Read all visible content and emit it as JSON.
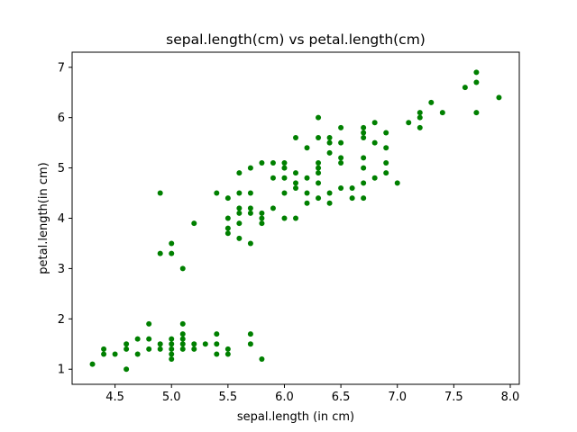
{
  "chart_data": {
    "type": "scatter",
    "title": "sepal.length(cm) vs petal.length(cm)",
    "xlabel": "sepal.length (in cm)",
    "ylabel": "petal.length(in cm)",
    "xlim": [
      4.12,
      8.08
    ],
    "ylim": [
      0.7,
      7.3
    ],
    "xticks": [
      4.5,
      5.0,
      5.5,
      6.0,
      6.5,
      7.0,
      7.5,
      8.0
    ],
    "xtick_labels": [
      "4.5",
      "5.0",
      "5.5",
      "6.0",
      "6.5",
      "7.0",
      "7.5",
      "8.0"
    ],
    "yticks": [
      1,
      2,
      3,
      4,
      5,
      6,
      7
    ],
    "ytick_labels": [
      "1",
      "2",
      "3",
      "4",
      "5",
      "6",
      "7"
    ],
    "grid": false,
    "marker_color": "#008000",
    "series": [
      {
        "points": [
          [
            4.3,
            1.1
          ],
          [
            4.4,
            1.3
          ],
          [
            4.4,
            1.4
          ],
          [
            4.5,
            1.3
          ],
          [
            4.6,
            1.0
          ],
          [
            4.6,
            1.4
          ],
          [
            4.6,
            1.5
          ],
          [
            4.7,
            1.3
          ],
          [
            4.7,
            1.6
          ],
          [
            4.8,
            1.4
          ],
          [
            4.8,
            1.6
          ],
          [
            4.8,
            1.9
          ],
          [
            4.9,
            1.4
          ],
          [
            4.9,
            1.5
          ],
          [
            5.0,
            1.2
          ],
          [
            5.0,
            1.3
          ],
          [
            5.0,
            1.4
          ],
          [
            5.0,
            1.5
          ],
          [
            5.0,
            1.6
          ],
          [
            5.1,
            1.4
          ],
          [
            5.1,
            1.5
          ],
          [
            5.1,
            1.6
          ],
          [
            5.1,
            1.7
          ],
          [
            5.1,
            1.9
          ],
          [
            5.2,
            1.4
          ],
          [
            5.2,
            1.5
          ],
          [
            5.3,
            1.5
          ],
          [
            5.4,
            1.3
          ],
          [
            5.4,
            1.5
          ],
          [
            5.4,
            1.7
          ],
          [
            5.5,
            1.3
          ],
          [
            5.5,
            1.4
          ],
          [
            5.7,
            1.5
          ],
          [
            5.7,
            1.7
          ],
          [
            5.8,
            1.2
          ],
          [
            4.9,
            3.3
          ],
          [
            4.9,
            4.5
          ],
          [
            5.0,
            3.3
          ],
          [
            5.0,
            3.5
          ],
          [
            5.1,
            3.0
          ],
          [
            5.2,
            3.9
          ],
          [
            5.4,
            4.5
          ],
          [
            5.5,
            3.7
          ],
          [
            5.5,
            3.8
          ],
          [
            5.5,
            4.0
          ],
          [
            5.5,
            4.4
          ],
          [
            5.6,
            3.6
          ],
          [
            5.6,
            3.9
          ],
          [
            5.6,
            4.1
          ],
          [
            5.6,
            4.2
          ],
          [
            5.6,
            4.5
          ],
          [
            5.6,
            4.9
          ],
          [
            5.7,
            3.5
          ],
          [
            5.7,
            4.1
          ],
          [
            5.7,
            4.2
          ],
          [
            5.7,
            4.5
          ],
          [
            5.7,
            5.0
          ],
          [
            5.8,
            3.9
          ],
          [
            5.8,
            4.0
          ],
          [
            5.8,
            4.1
          ],
          [
            5.8,
            5.1
          ],
          [
            5.9,
            4.2
          ],
          [
            5.9,
            4.8
          ],
          [
            5.9,
            5.1
          ],
          [
            6.0,
            4.0
          ],
          [
            6.0,
            4.5
          ],
          [
            6.0,
            4.8
          ],
          [
            6.0,
            5.0
          ],
          [
            6.0,
            5.1
          ],
          [
            6.1,
            4.0
          ],
          [
            6.1,
            4.6
          ],
          [
            6.1,
            4.7
          ],
          [
            6.1,
            4.9
          ],
          [
            6.1,
            5.6
          ],
          [
            6.2,
            4.3
          ],
          [
            6.2,
            4.5
          ],
          [
            6.2,
            4.8
          ],
          [
            6.2,
            5.4
          ],
          [
            6.3,
            4.4
          ],
          [
            6.3,
            4.7
          ],
          [
            6.3,
            4.9
          ],
          [
            6.3,
            5.0
          ],
          [
            6.3,
            5.1
          ],
          [
            6.3,
            5.6
          ],
          [
            6.3,
            6.0
          ],
          [
            6.4,
            4.3
          ],
          [
            6.4,
            4.5
          ],
          [
            6.4,
            5.3
          ],
          [
            6.4,
            5.5
          ],
          [
            6.4,
            5.6
          ],
          [
            6.5,
            4.6
          ],
          [
            6.5,
            5.1
          ],
          [
            6.5,
            5.2
          ],
          [
            6.5,
            5.5
          ],
          [
            6.5,
            5.8
          ],
          [
            6.6,
            4.4
          ],
          [
            6.6,
            4.6
          ],
          [
            6.7,
            4.4
          ],
          [
            6.7,
            4.7
          ],
          [
            6.7,
            5.0
          ],
          [
            6.7,
            5.2
          ],
          [
            6.7,
            5.6
          ],
          [
            6.7,
            5.7
          ],
          [
            6.7,
            5.8
          ],
          [
            6.8,
            4.8
          ],
          [
            6.8,
            5.5
          ],
          [
            6.8,
            5.9
          ],
          [
            6.9,
            4.9
          ],
          [
            6.9,
            5.1
          ],
          [
            6.9,
            5.4
          ],
          [
            6.9,
            5.7
          ],
          [
            7.0,
            4.7
          ],
          [
            7.1,
            5.9
          ],
          [
            7.2,
            5.8
          ],
          [
            7.2,
            6.0
          ],
          [
            7.2,
            6.1
          ],
          [
            7.3,
            6.3
          ],
          [
            7.4,
            6.1
          ],
          [
            7.6,
            6.6
          ],
          [
            7.7,
            6.1
          ],
          [
            7.7,
            6.7
          ],
          [
            7.7,
            6.9
          ],
          [
            7.9,
            6.4
          ]
        ]
      }
    ]
  }
}
